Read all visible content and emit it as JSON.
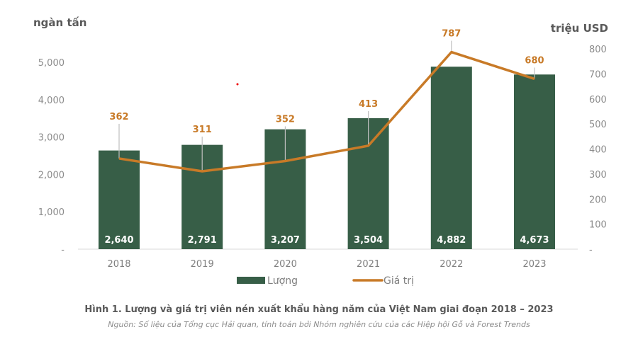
{
  "chart_data": {
    "type": "bar+line",
    "title": "Hình 1. Lượng và giá trị viên nén xuất khẩu hàng năm của Việt Nam giai đoạn 2018 – 2023",
    "subtitle": "Nguồn: Số liệu của Tổng cục Hải quan, tính toán bởi Nhóm nghiên cứu của các Hiệp hội Gỗ và Forest Trends",
    "categories": [
      "2018",
      "2019",
      "2020",
      "2021",
      "2022",
      "2023"
    ],
    "ylabel_left": "ngàn tấn",
    "ylabel_right": "triệu USD",
    "y_left": {
      "range": [
        0,
        5000
      ],
      "ticks": [
        "-",
        "1,000",
        "2,000",
        "3,000",
        "4,000",
        "5,000"
      ],
      "tick_values": [
        0,
        1000,
        2000,
        3000,
        4000,
        5000
      ]
    },
    "y_right": {
      "range": [
        0,
        800
      ],
      "ticks": [
        "-",
        "100",
        "200",
        "300",
        "400",
        "500",
        "600",
        "700",
        "800"
      ],
      "tick_values": [
        0,
        100,
        200,
        300,
        400,
        500,
        600,
        700,
        800
      ]
    },
    "series": [
      {
        "name": "Lượng",
        "type": "bar",
        "axis": "left",
        "color": "#375E47",
        "values": [
          2640,
          2791,
          3207,
          3504,
          4882,
          4673
        ],
        "labels": [
          "2,640",
          "2,791",
          "3,207",
          "3,504",
          "4,882",
          "4,673"
        ]
      },
      {
        "name": "Giá trị",
        "type": "line",
        "axis": "right",
        "color": "#C87A27",
        "values": [
          362,
          311,
          352,
          413,
          787,
          680
        ],
        "labels": [
          "362",
          "311",
          "352",
          "413",
          "787",
          "680"
        ]
      }
    ],
    "legend": "bottom",
    "grid": false
  }
}
